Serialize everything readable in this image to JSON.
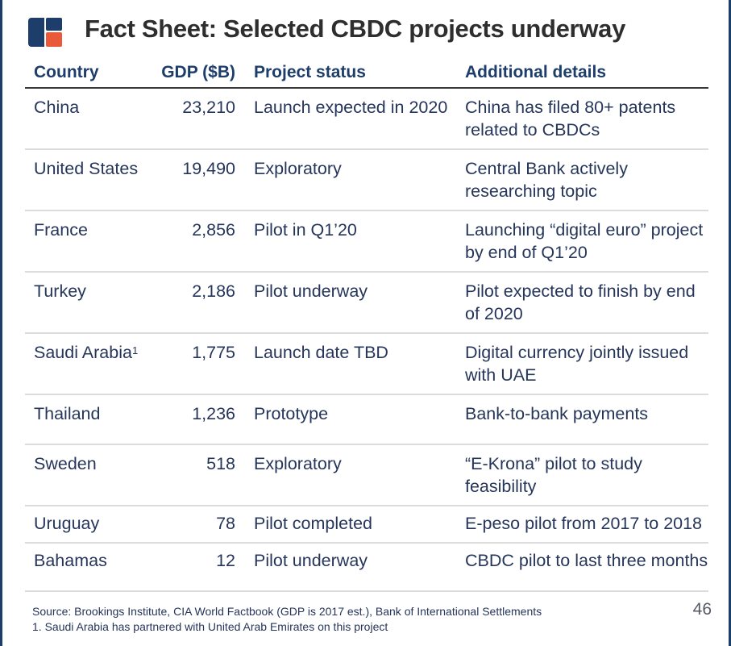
{
  "header": {
    "title": "Fact Sheet: Selected CBDC projects underway",
    "colors": {
      "navy": "#1d3d6b",
      "accent": "#e85a3a"
    }
  },
  "table": {
    "headers": {
      "country": "Country",
      "gdp": "GDP ($B)",
      "status": "Project status",
      "details": "Additional details"
    },
    "rows": [
      {
        "country": "China",
        "footnote_mark": "",
        "gdp": "23,210",
        "status": "Launch expected in 2020",
        "details": "China has filed 80+ patents related to CBDCs"
      },
      {
        "country": "United States",
        "footnote_mark": "",
        "gdp": "19,490",
        "status": "Exploratory",
        "details": "Central Bank actively researching topic"
      },
      {
        "country": "France",
        "footnote_mark": "",
        "gdp": "2,856",
        "status": "Pilot in Q1’20",
        "details": "Launching “digital euro” project by end of Q1’20"
      },
      {
        "country": "Turkey",
        "footnote_mark": "",
        "gdp": "2,186",
        "status": "Pilot underway",
        "details": "Pilot expected to finish by end of 2020"
      },
      {
        "country": "Saudi Arabia",
        "footnote_mark": "1",
        "gdp": "1,775",
        "status": "Launch date TBD",
        "details": "Digital currency jointly issued with UAE"
      },
      {
        "country": "Thailand",
        "footnote_mark": "",
        "gdp": "1,236",
        "status": "Prototype",
        "details": "Bank-to-bank payments"
      },
      {
        "country": "Sweden",
        "footnote_mark": "",
        "gdp": "518",
        "status": "Exploratory",
        "details": "“E-Krona” pilot to study feasibility"
      },
      {
        "country": "Uruguay",
        "footnote_mark": "",
        "gdp": "78",
        "status": "Pilot completed",
        "details": "E-peso pilot from 2017 to 2018"
      },
      {
        "country": "Bahamas",
        "footnote_mark": "",
        "gdp": "12",
        "status": "Pilot underway",
        "details": "CBDC pilot to last three months"
      }
    ]
  },
  "footer": {
    "source": "Source: Brookings Institute, CIA World Factbook (GDP is 2017 est.), Bank of International Settlements",
    "footnote": "1. Saudi Arabia has partnered with United Arab Emirates on this project",
    "page_number": "46"
  }
}
